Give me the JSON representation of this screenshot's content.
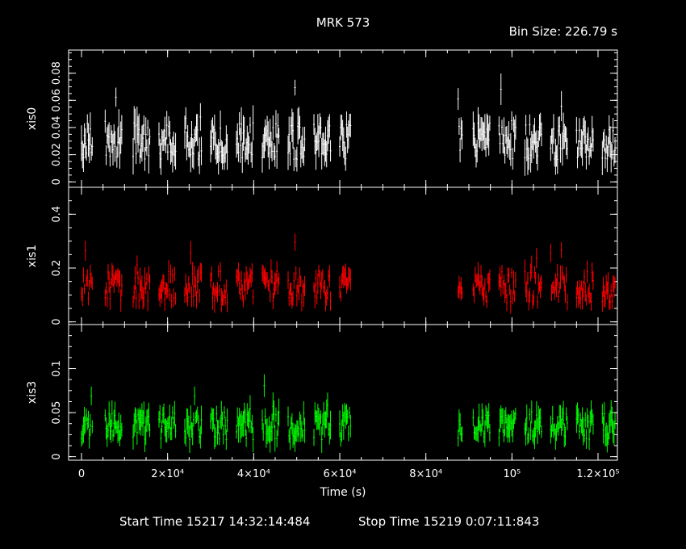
{
  "header": {
    "title": "MRK 573",
    "bin_size": "Bin Size: 226.79 s"
  },
  "footer": {
    "start_time": "Start Time 15217 14:32:14:484",
    "stop_time": "Stop Time 15219  0:07:11:843"
  },
  "chart_data": {
    "type": "scatter",
    "xlabel": "Time (s)",
    "xlim": [
      -3000,
      124500
    ],
    "x_ticks": [
      {
        "value": 0,
        "label": "0"
      },
      {
        "value": 20000,
        "label": "2×10⁴"
      },
      {
        "value": 40000,
        "label": "4×10⁴"
      },
      {
        "value": 60000,
        "label": "6×10⁴"
      },
      {
        "value": 80000,
        "label": "8×10⁴"
      },
      {
        "value": 100000,
        "label": "10⁵"
      },
      {
        "value": 120000,
        "label": "1.2×10⁵"
      }
    ],
    "segments": [
      [
        0,
        2500
      ],
      [
        5500,
        9500
      ],
      [
        12000,
        16000
      ],
      [
        18000,
        22000
      ],
      [
        24000,
        28000
      ],
      [
        30000,
        34000
      ],
      [
        36000,
        40000
      ],
      [
        42000,
        46000
      ],
      [
        48000,
        52000
      ],
      [
        54000,
        58000
      ],
      [
        60000,
        62500
      ],
      [
        87500,
        88500
      ],
      [
        91000,
        95000
      ],
      [
        97000,
        101000
      ],
      [
        103000,
        107000
      ],
      [
        109000,
        113000
      ],
      [
        115000,
        119000
      ],
      [
        121000,
        124000
      ]
    ],
    "panels": [
      {
        "name": "xis0",
        "color": "#ffffff",
        "ylim": [
          -0.004,
          0.097
        ],
        "y_ticks": [
          {
            "value": 0,
            "label": "0"
          },
          {
            "value": 0.02,
            "label": "0.02"
          },
          {
            "value": 0.04,
            "label": "0.04"
          },
          {
            "value": 0.06,
            "label": "0.06"
          },
          {
            "value": 0.08,
            "label": "0.08"
          }
        ],
        "typical_rate": 0.03,
        "typical_error": 0.009
      },
      {
        "name": "xis1",
        "color": "#ff0000",
        "ylim": [
          -0.01,
          0.5
        ],
        "y_ticks": [
          {
            "value": 0,
            "label": "0"
          },
          {
            "value": 0.2,
            "label": "0.2"
          },
          {
            "value": 0.4,
            "label": "0.4"
          }
        ],
        "typical_rate": 0.13,
        "typical_error": 0.03
      },
      {
        "name": "xis3",
        "color": "#00ff00",
        "ylim": [
          -0.004,
          0.15
        ],
        "y_ticks": [
          {
            "value": 0,
            "label": "0"
          },
          {
            "value": 0.05,
            "label": "0.05"
          },
          {
            "value": 0.1,
            "label": "0.1"
          }
        ],
        "typical_rate": 0.035,
        "typical_error": 0.011
      }
    ]
  }
}
